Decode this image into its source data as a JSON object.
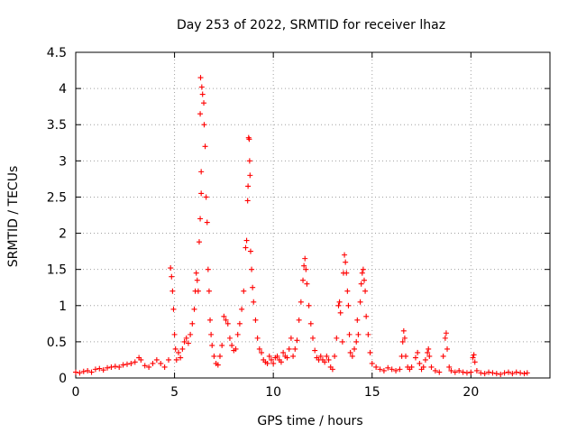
{
  "chart_data": {
    "type": "scatter",
    "title": "Day 253 of 2022, SRMTID for receiver lhaz",
    "xlabel": "GPS time / hours",
    "ylabel": "SRMTID / TECUs",
    "xlim": [
      0,
      24
    ],
    "ylim": [
      0,
      4.5
    ],
    "xticks": [
      "0",
      "5",
      "10",
      "15",
      "20"
    ],
    "yticks": [
      "0",
      "0.5",
      "1",
      "1.5",
      "2",
      "2.5",
      "3",
      "3.5",
      "4",
      "4.5"
    ],
    "grid": true,
    "marker": "plus",
    "color": "#ff0000",
    "series": [
      {
        "name": "SRMTID",
        "points": [
          [
            0.0,
            0.08
          ],
          [
            0.2,
            0.07
          ],
          [
            0.4,
            0.09
          ],
          [
            0.6,
            0.1
          ],
          [
            0.8,
            0.08
          ],
          [
            1.0,
            0.12
          ],
          [
            1.2,
            0.13
          ],
          [
            1.4,
            0.11
          ],
          [
            1.6,
            0.14
          ],
          [
            1.8,
            0.15
          ],
          [
            2.0,
            0.16
          ],
          [
            2.2,
            0.15
          ],
          [
            2.4,
            0.18
          ],
          [
            2.6,
            0.19
          ],
          [
            2.8,
            0.2
          ],
          [
            3.0,
            0.22
          ],
          [
            3.2,
            0.28
          ],
          [
            3.3,
            0.25
          ],
          [
            3.5,
            0.17
          ],
          [
            3.7,
            0.15
          ],
          [
            3.9,
            0.2
          ],
          [
            4.1,
            0.25
          ],
          [
            4.3,
            0.2
          ],
          [
            4.5,
            0.15
          ],
          [
            4.7,
            0.25
          ],
          [
            4.8,
            1.52
          ],
          [
            4.85,
            1.4
          ],
          [
            4.9,
            1.2
          ],
          [
            4.95,
            0.95
          ],
          [
            5.0,
            0.6
          ],
          [
            5.05,
            0.4
          ],
          [
            5.1,
            0.25
          ],
          [
            5.2,
            0.35
          ],
          [
            5.3,
            0.28
          ],
          [
            5.4,
            0.4
          ],
          [
            5.5,
            0.5
          ],
          [
            5.6,
            0.55
          ],
          [
            5.7,
            0.48
          ],
          [
            5.8,
            0.6
          ],
          [
            5.9,
            0.75
          ],
          [
            6.0,
            0.95
          ],
          [
            6.05,
            1.2
          ],
          [
            6.1,
            1.45
          ],
          [
            6.15,
            1.35
          ],
          [
            6.2,
            1.2
          ],
          [
            6.25,
            1.88
          ],
          [
            6.3,
            2.2
          ],
          [
            6.35,
            2.55
          ],
          [
            6.35,
            2.85
          ],
          [
            6.3,
            3.65
          ],
          [
            6.32,
            4.15
          ],
          [
            6.38,
            4.02
          ],
          [
            6.42,
            3.92
          ],
          [
            6.48,
            3.8
          ],
          [
            6.5,
            3.5
          ],
          [
            6.55,
            3.2
          ],
          [
            6.6,
            2.5
          ],
          [
            6.65,
            2.15
          ],
          [
            6.7,
            1.5
          ],
          [
            6.75,
            1.2
          ],
          [
            6.8,
            0.8
          ],
          [
            6.85,
            0.6
          ],
          [
            6.9,
            0.45
          ],
          [
            7.0,
            0.3
          ],
          [
            7.1,
            0.2
          ],
          [
            7.2,
            0.18
          ],
          [
            7.3,
            0.3
          ],
          [
            7.4,
            0.45
          ],
          [
            7.5,
            0.85
          ],
          [
            7.6,
            0.8
          ],
          [
            7.7,
            0.75
          ],
          [
            7.8,
            0.55
          ],
          [
            7.9,
            0.45
          ],
          [
            8.0,
            0.38
          ],
          [
            8.1,
            0.4
          ],
          [
            8.2,
            0.6
          ],
          [
            8.3,
            0.75
          ],
          [
            8.4,
            0.95
          ],
          [
            8.5,
            1.2
          ],
          [
            8.6,
            1.8
          ],
          [
            8.65,
            1.9
          ],
          [
            8.7,
            2.45
          ],
          [
            8.72,
            2.65
          ],
          [
            8.75,
            3.32
          ],
          [
            8.78,
            3.3
          ],
          [
            8.8,
            3.0
          ],
          [
            8.82,
            2.8
          ],
          [
            8.85,
            1.75
          ],
          [
            8.9,
            1.5
          ],
          [
            8.95,
            1.25
          ],
          [
            9.0,
            1.05
          ],
          [
            9.1,
            0.8
          ],
          [
            9.2,
            0.55
          ],
          [
            9.3,
            0.4
          ],
          [
            9.4,
            0.35
          ],
          [
            9.5,
            0.25
          ],
          [
            9.6,
            0.22
          ],
          [
            9.7,
            0.2
          ],
          [
            9.8,
            0.3
          ],
          [
            9.9,
            0.25
          ],
          [
            10.0,
            0.2
          ],
          [
            10.1,
            0.28
          ],
          [
            10.2,
            0.3
          ],
          [
            10.3,
            0.25
          ],
          [
            10.4,
            0.22
          ],
          [
            10.5,
            0.35
          ],
          [
            10.6,
            0.3
          ],
          [
            10.7,
            0.28
          ],
          [
            10.8,
            0.4
          ],
          [
            10.9,
            0.55
          ],
          [
            11.0,
            0.3
          ],
          [
            11.1,
            0.4
          ],
          [
            11.2,
            0.52
          ],
          [
            11.3,
            0.8
          ],
          [
            11.4,
            1.05
          ],
          [
            11.5,
            1.35
          ],
          [
            11.55,
            1.55
          ],
          [
            11.6,
            1.65
          ],
          [
            11.65,
            1.5
          ],
          [
            11.7,
            1.3
          ],
          [
            11.8,
            1.0
          ],
          [
            11.9,
            0.75
          ],
          [
            12.0,
            0.55
          ],
          [
            12.1,
            0.38
          ],
          [
            12.2,
            0.28
          ],
          [
            12.3,
            0.25
          ],
          [
            12.4,
            0.3
          ],
          [
            12.5,
            0.25
          ],
          [
            12.6,
            0.22
          ],
          [
            12.7,
            0.3
          ],
          [
            12.8,
            0.25
          ],
          [
            12.9,
            0.15
          ],
          [
            13.0,
            0.12
          ],
          [
            13.1,
            0.3
          ],
          [
            13.2,
            0.55
          ],
          [
            13.3,
            1.0
          ],
          [
            13.35,
            1.05
          ],
          [
            13.4,
            0.9
          ],
          [
            13.5,
            0.5
          ],
          [
            13.55,
            1.45
          ],
          [
            13.6,
            1.7
          ],
          [
            13.65,
            1.6
          ],
          [
            13.7,
            1.45
          ],
          [
            13.75,
            1.2
          ],
          [
            13.8,
            1.0
          ],
          [
            13.85,
            0.6
          ],
          [
            13.9,
            0.35
          ],
          [
            14.0,
            0.3
          ],
          [
            14.1,
            0.4
          ],
          [
            14.2,
            0.5
          ],
          [
            14.25,
            0.8
          ],
          [
            14.3,
            0.6
          ],
          [
            14.4,
            1.05
          ],
          [
            14.45,
            1.3
          ],
          [
            14.5,
            1.45
          ],
          [
            14.55,
            1.5
          ],
          [
            14.6,
            1.35
          ],
          [
            14.65,
            1.2
          ],
          [
            14.7,
            0.85
          ],
          [
            14.8,
            0.6
          ],
          [
            14.9,
            0.35
          ],
          [
            15.0,
            0.2
          ],
          [
            15.2,
            0.15
          ],
          [
            15.4,
            0.12
          ],
          [
            15.6,
            0.1
          ],
          [
            15.8,
            0.14
          ],
          [
            16.0,
            0.12
          ],
          [
            16.2,
            0.1
          ],
          [
            16.4,
            0.12
          ],
          [
            16.5,
            0.3
          ],
          [
            16.55,
            0.5
          ],
          [
            16.6,
            0.65
          ],
          [
            16.65,
            0.55
          ],
          [
            16.7,
            0.3
          ],
          [
            16.8,
            0.15
          ],
          [
            16.9,
            0.12
          ],
          [
            17.0,
            0.15
          ],
          [
            17.2,
            0.28
          ],
          [
            17.3,
            0.35
          ],
          [
            17.4,
            0.2
          ],
          [
            17.5,
            0.12
          ],
          [
            17.6,
            0.15
          ],
          [
            17.7,
            0.25
          ],
          [
            17.8,
            0.35
          ],
          [
            17.85,
            0.4
          ],
          [
            17.9,
            0.3
          ],
          [
            18.0,
            0.15
          ],
          [
            18.2,
            0.1
          ],
          [
            18.4,
            0.08
          ],
          [
            18.6,
            0.3
          ],
          [
            18.7,
            0.55
          ],
          [
            18.75,
            0.62
          ],
          [
            18.8,
            0.4
          ],
          [
            18.9,
            0.15
          ],
          [
            19.0,
            0.1
          ],
          [
            19.2,
            0.08
          ],
          [
            19.4,
            0.1
          ],
          [
            19.6,
            0.08
          ],
          [
            19.8,
            0.07
          ],
          [
            20.0,
            0.08
          ],
          [
            20.1,
            0.28
          ],
          [
            20.15,
            0.32
          ],
          [
            20.2,
            0.22
          ],
          [
            20.3,
            0.1
          ],
          [
            20.5,
            0.07
          ],
          [
            20.7,
            0.06
          ],
          [
            20.9,
            0.08
          ],
          [
            21.1,
            0.07
          ],
          [
            21.3,
            0.06
          ],
          [
            21.5,
            0.05
          ],
          [
            21.7,
            0.07
          ],
          [
            21.9,
            0.08
          ],
          [
            22.1,
            0.06
          ],
          [
            22.3,
            0.08
          ],
          [
            22.5,
            0.07
          ],
          [
            22.7,
            0.06
          ],
          [
            22.85,
            0.07
          ]
        ]
      }
    ]
  }
}
